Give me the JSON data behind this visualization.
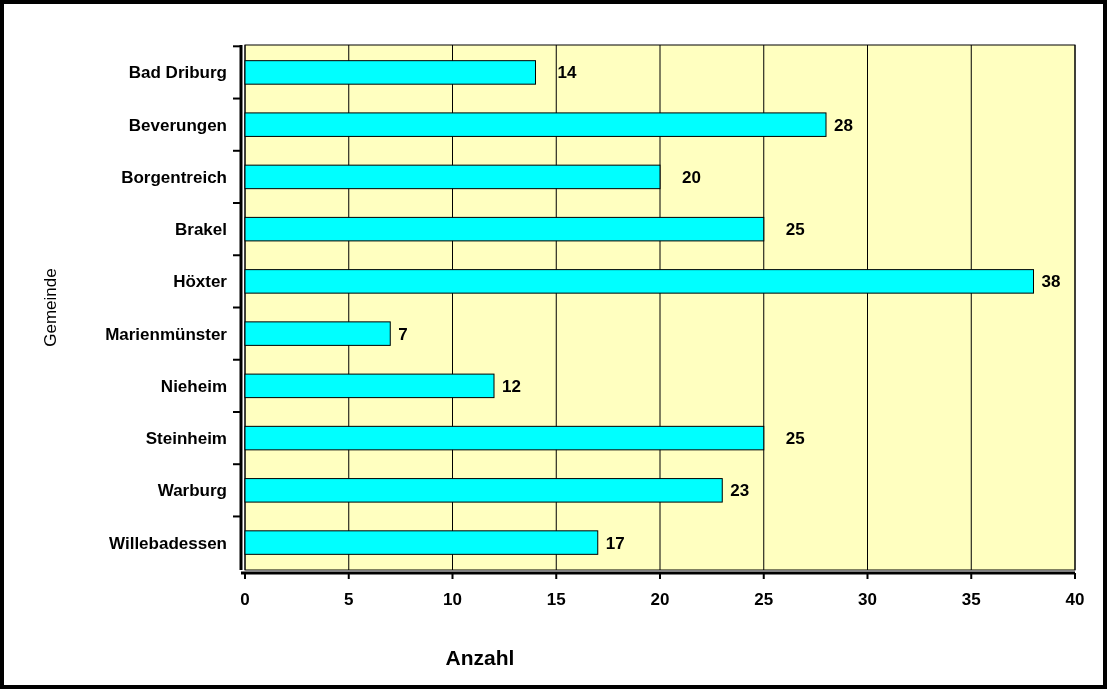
{
  "chart_data": {
    "type": "bar",
    "orientation": "horizontal",
    "xlabel": "Anzahl",
    "ylabel": "Gemeinde",
    "categories": [
      "Bad Driburg",
      "Beverungen",
      "Borgentreich",
      "Brakel",
      "Höxter",
      "Marienmünster",
      "Nieheim",
      "Steinheim",
      "Warburg",
      "Willebadessen"
    ],
    "values": [
      14,
      28,
      20,
      25,
      38,
      7,
      12,
      25,
      23,
      17
    ],
    "color": "#00ffff",
    "data_labels": true,
    "grid": "x",
    "xlim": [
      0,
      40
    ],
    "xticks": [
      0,
      5,
      10,
      15,
      20,
      25,
      30,
      35,
      40
    ]
  }
}
